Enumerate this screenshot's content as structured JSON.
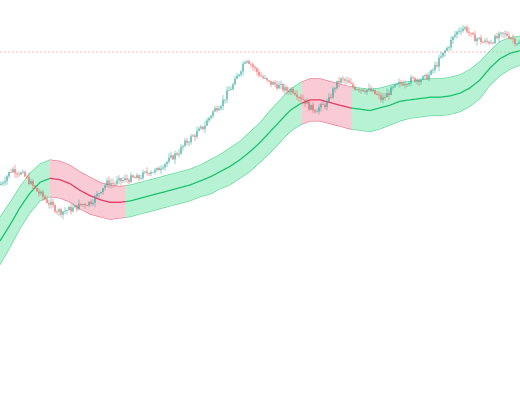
{
  "chart_data": {
    "type": "line",
    "title": "",
    "xlabel": "",
    "ylabel": "",
    "grid": false,
    "colors": {
      "bull_candle": "#26a69a",
      "bear_candle": "#ef5350",
      "band_fill_green": "#7ee8b0",
      "band_fill_red": "#f3a0b2",
      "band_line_green": "#19c46c",
      "band_line_red": "#e63a63",
      "reference_line": "#f7a0a0"
    },
    "reference_line": {
      "value": 1.0
    },
    "price_trace": {
      "x": [
        0,
        6,
        12,
        18,
        24,
        30,
        36,
        42,
        48,
        54,
        60,
        66,
        72,
        78,
        84,
        90,
        96,
        102,
        108,
        114,
        120,
        126,
        132,
        138,
        144,
        150,
        156,
        162,
        168,
        174,
        180,
        186,
        192,
        198,
        204,
        210,
        216,
        222,
        228,
        234,
        240,
        246,
        250,
        256,
        262,
        268,
        274,
        280,
        286,
        292,
        298,
        304,
        310,
        316,
        322,
        328,
        334,
        340,
        346,
        352,
        358,
        364,
        370,
        376,
        382,
        388,
        394,
        400,
        406,
        412,
        418,
        424,
        430,
        436,
        442,
        448,
        454,
        460,
        466,
        472,
        478,
        484,
        490,
        496,
        502,
        508,
        514,
        520
      ],
      "y": [
        0.0,
        0.06,
        0.12,
        0.1,
        0.07,
        0.02,
        -0.04,
        -0.08,
        -0.13,
        -0.17,
        -0.2,
        -0.19,
        -0.18,
        -0.16,
        -0.14,
        -0.13,
        -0.09,
        -0.02,
        0.02,
        0.01,
        0.03,
        0.04,
        0.05,
        0.05,
        0.08,
        0.11,
        0.1,
        0.15,
        0.18,
        0.22,
        0.26,
        0.32,
        0.36,
        0.4,
        0.44,
        0.52,
        0.58,
        0.62,
        0.7,
        0.76,
        0.86,
        0.96,
        0.92,
        0.86,
        0.81,
        0.77,
        0.76,
        0.74,
        0.71,
        0.72,
        0.68,
        0.64,
        0.58,
        0.57,
        0.59,
        0.62,
        0.73,
        0.79,
        0.78,
        0.74,
        0.73,
        0.72,
        0.71,
        0.68,
        0.64,
        0.69,
        0.73,
        0.76,
        0.78,
        0.79,
        0.8,
        0.8,
        0.83,
        0.9,
        0.97,
        1.04,
        1.12,
        1.18,
        1.18,
        1.11,
        1.1,
        1.07,
        1.08,
        1.1,
        1.13,
        1.13,
        1.09,
        1.06
      ]
    },
    "band": {
      "x": [
        0,
        10,
        20,
        30,
        40,
        50,
        60,
        70,
        80,
        90,
        100,
        110,
        120,
        130,
        140,
        150,
        160,
        170,
        180,
        190,
        200,
        210,
        220,
        230,
        240,
        250,
        260,
        270,
        280,
        290,
        300,
        310,
        320,
        330,
        340,
        350,
        360,
        370,
        380,
        390,
        400,
        410,
        420,
        430,
        440,
        450,
        460,
        470,
        480,
        490,
        500,
        510,
        520
      ],
      "center": [
        -0.42,
        -0.3,
        -0.17,
        -0.06,
        0.02,
        0.05,
        0.04,
        0.01,
        -0.04,
        -0.08,
        -0.11,
        -0.13,
        -0.13,
        -0.12,
        -0.1,
        -0.08,
        -0.06,
        -0.04,
        -0.02,
        0.0,
        0.03,
        0.06,
        0.1,
        0.14,
        0.19,
        0.25,
        0.32,
        0.4,
        0.48,
        0.56,
        0.61,
        0.64,
        0.64,
        0.62,
        0.6,
        0.58,
        0.57,
        0.56,
        0.58,
        0.6,
        0.63,
        0.64,
        0.65,
        0.66,
        0.66,
        0.67,
        0.69,
        0.73,
        0.79,
        0.88,
        0.95,
        0.99,
        1.01
      ],
      "upper": [
        -0.24,
        -0.13,
        -0.01,
        0.09,
        0.16,
        0.19,
        0.18,
        0.15,
        0.1,
        0.06,
        0.02,
        0.0,
        -0.01,
        0.0,
        0.02,
        0.04,
        0.06,
        0.08,
        0.1,
        0.12,
        0.15,
        0.19,
        0.23,
        0.28,
        0.33,
        0.4,
        0.47,
        0.56,
        0.64,
        0.72,
        0.77,
        0.8,
        0.8,
        0.78,
        0.76,
        0.74,
        0.73,
        0.72,
        0.73,
        0.75,
        0.77,
        0.78,
        0.79,
        0.8,
        0.8,
        0.81,
        0.83,
        0.87,
        0.93,
        1.01,
        1.08,
        1.11,
        1.12
      ],
      "lower": [
        -0.6,
        -0.47,
        -0.33,
        -0.21,
        -0.12,
        -0.09,
        -0.1,
        -0.13,
        -0.18,
        -0.22,
        -0.24,
        -0.26,
        -0.25,
        -0.24,
        -0.22,
        -0.2,
        -0.18,
        -0.16,
        -0.14,
        -0.12,
        -0.09,
        -0.07,
        -0.03,
        0.0,
        0.05,
        0.1,
        0.17,
        0.24,
        0.32,
        0.4,
        0.45,
        0.48,
        0.48,
        0.46,
        0.44,
        0.42,
        0.41,
        0.4,
        0.42,
        0.45,
        0.48,
        0.5,
        0.51,
        0.52,
        0.52,
        0.53,
        0.55,
        0.59,
        0.65,
        0.75,
        0.82,
        0.87,
        0.9
      ],
      "bearish_x_ranges": [
        [
          50,
          125
        ],
        [
          302,
          352
        ]
      ]
    }
  }
}
